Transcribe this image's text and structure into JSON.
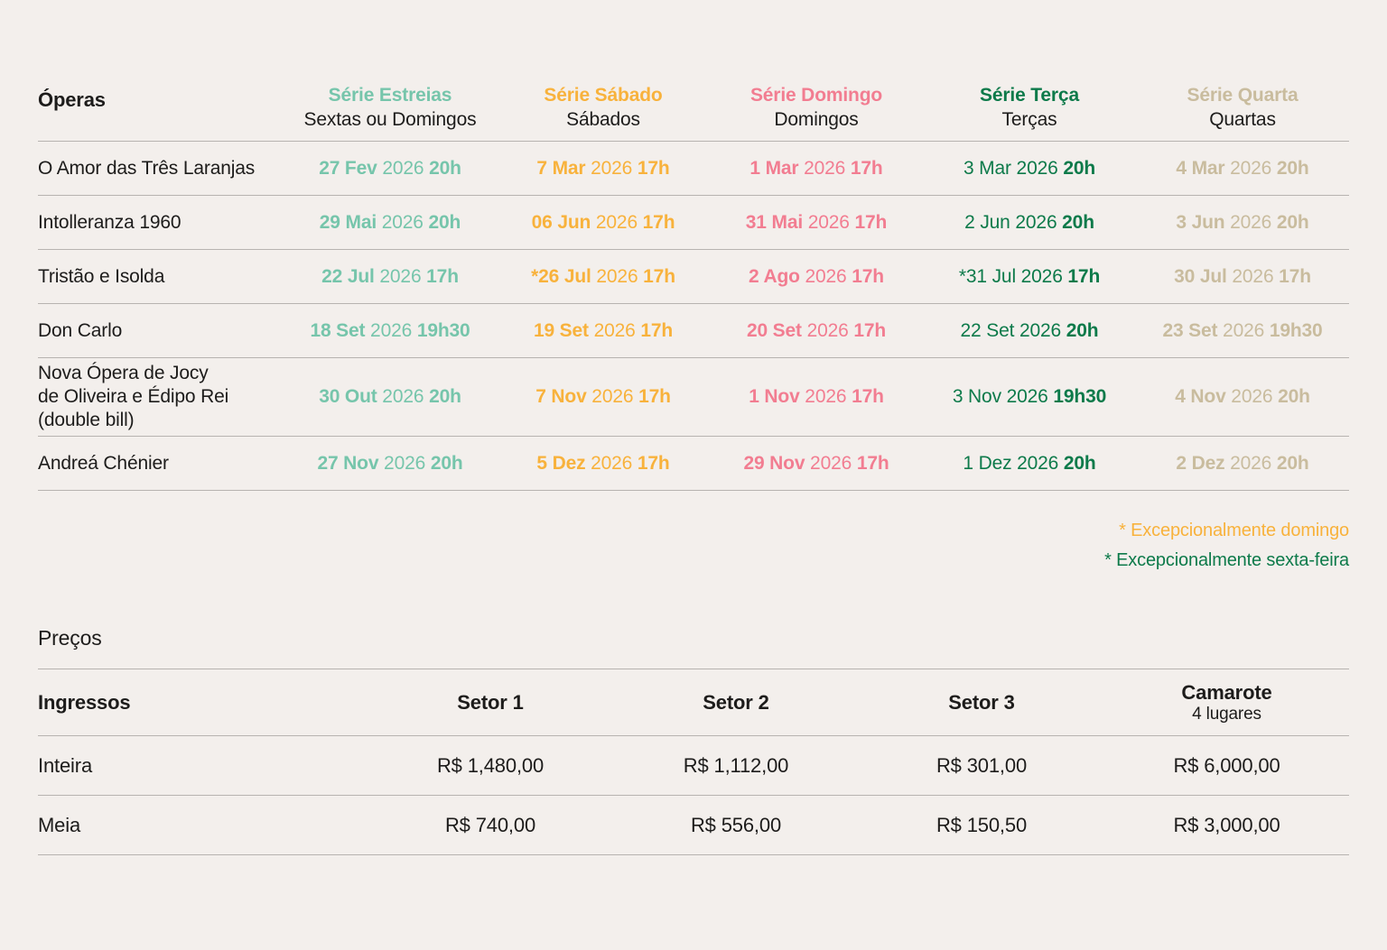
{
  "colors": {
    "background": "#f3efec",
    "text": "#1d1c1b",
    "divider": "#b7b3b0",
    "serie_estreias": "#76c5ab",
    "serie_sabado": "#f8b23c",
    "serie_domingo": "#f27d91",
    "serie_terca": "#0d7a4a",
    "serie_quarta": "#c9bc9e"
  },
  "schedule": {
    "header_label": "Óperas",
    "columns": [
      {
        "label": "Série Estreias",
        "sublabel": "Sextas ou Domingos",
        "color": "#76c5ab"
      },
      {
        "label": "Série Sábado",
        "sublabel": "Sábados",
        "color": "#f8b23c"
      },
      {
        "label": "Série Domingo",
        "sublabel": "Domingos",
        "color": "#f27d91"
      },
      {
        "label": "Série Terça",
        "sublabel": "Terças",
        "color": "#0d7a4a"
      },
      {
        "label": "Série Quarta",
        "sublabel": "Quartas",
        "color": "#c9bc9e"
      }
    ],
    "rows": [
      {
        "opera": "O Amor das Três Laranjas",
        "cells": [
          {
            "d": "27 Fev",
            "y": "2026",
            "t": "20h"
          },
          {
            "d": "7 Mar",
            "y": "2026",
            "t": "17h"
          },
          {
            "d": "1 Mar",
            "y": "2026",
            "t": "17h"
          },
          {
            "d": "3 Mar",
            "y": "2026",
            "t": "20h"
          },
          {
            "d": "4 Mar",
            "y": "2026",
            "t": "20h"
          }
        ]
      },
      {
        "opera": "Intolleranza 1960",
        "cells": [
          {
            "d": "29 Mai",
            "y": "2026",
            "t": "20h"
          },
          {
            "d": "06 Jun",
            "y": "2026",
            "t": "17h"
          },
          {
            "d": "31 Mai",
            "y": "2026",
            "t": "17h"
          },
          {
            "d": "2 Jun",
            "y": "2026",
            "t": "20h"
          },
          {
            "d": "3 Jun",
            "y": "2026",
            "t": "20h"
          }
        ]
      },
      {
        "opera": "Tristão e Isolda",
        "cells": [
          {
            "d": "22 Jul",
            "y": "2026",
            "t": "17h"
          },
          {
            "d": "*26 Jul",
            "y": "2026",
            "t": "17h"
          },
          {
            "d": "2 Ago",
            "y": "2026",
            "t": "17h"
          },
          {
            "d": "*31 Jul",
            "y": "2026",
            "t": "17h"
          },
          {
            "d": "30 Jul",
            "y": "2026",
            "t": "17h"
          }
        ]
      },
      {
        "opera": "Don Carlo",
        "cells": [
          {
            "d": "18 Set",
            "y": "2026",
            "t": "19h30"
          },
          {
            "d": "19 Set",
            "y": "2026",
            "t": "17h"
          },
          {
            "d": "20 Set",
            "y": "2026",
            "t": "17h"
          },
          {
            "d": "22 Set",
            "y": "2026",
            "t": "20h"
          },
          {
            "d": "23 Set",
            "y": "2026",
            "t": "19h30"
          }
        ]
      },
      {
        "opera": "Nova Ópera de Jocy\nde Oliveira e Édipo Rei\n(double bill)",
        "cells": [
          {
            "d": "30 Out",
            "y": "2026",
            "t": "20h"
          },
          {
            "d": "7 Nov",
            "y": "2026",
            "t": "17h"
          },
          {
            "d": "1 Nov",
            "y": "2026",
            "t": "17h"
          },
          {
            "d": "3 Nov",
            "y": "2026",
            "t": "19h30"
          },
          {
            "d": "4 Nov",
            "y": "2026",
            "t": "20h"
          }
        ]
      },
      {
        "opera": "Andreá Chénier",
        "cells": [
          {
            "d": "27 Nov",
            "y": "2026",
            "t": "20h"
          },
          {
            "d": "5 Dez",
            "y": "2026",
            "t": "17h"
          },
          {
            "d": "29 Nov",
            "y": "2026",
            "t": "17h"
          },
          {
            "d": "1 Dez",
            "y": "2026",
            "t": "20h"
          },
          {
            "d": "2 Dez",
            "y": "2026",
            "t": "20h"
          }
        ]
      }
    ],
    "footnotes": [
      {
        "text": "* Excepcionalmente domingo",
        "color": "#f8b23c"
      },
      {
        "text": "* Excepcionalmente sexta-feira",
        "color": "#0d7a4a"
      }
    ]
  },
  "prices": {
    "title": "Preços",
    "header_label": "Ingressos",
    "columns": [
      {
        "label": "Setor 1"
      },
      {
        "label": "Setor 2"
      },
      {
        "label": "Setor 3"
      },
      {
        "label": "Camarote",
        "sublabel": "4 lugares"
      }
    ],
    "rows": [
      {
        "label": "Inteira",
        "values": [
          "R$ 1,480,00",
          "R$ 1,112,00",
          "R$ 301,00",
          "R$ 6,000,00"
        ]
      },
      {
        "label": "Meia",
        "values": [
          "R$ 740,00",
          "R$ 556,00",
          "R$ 150,50",
          "R$ 3,000,00"
        ]
      }
    ]
  }
}
